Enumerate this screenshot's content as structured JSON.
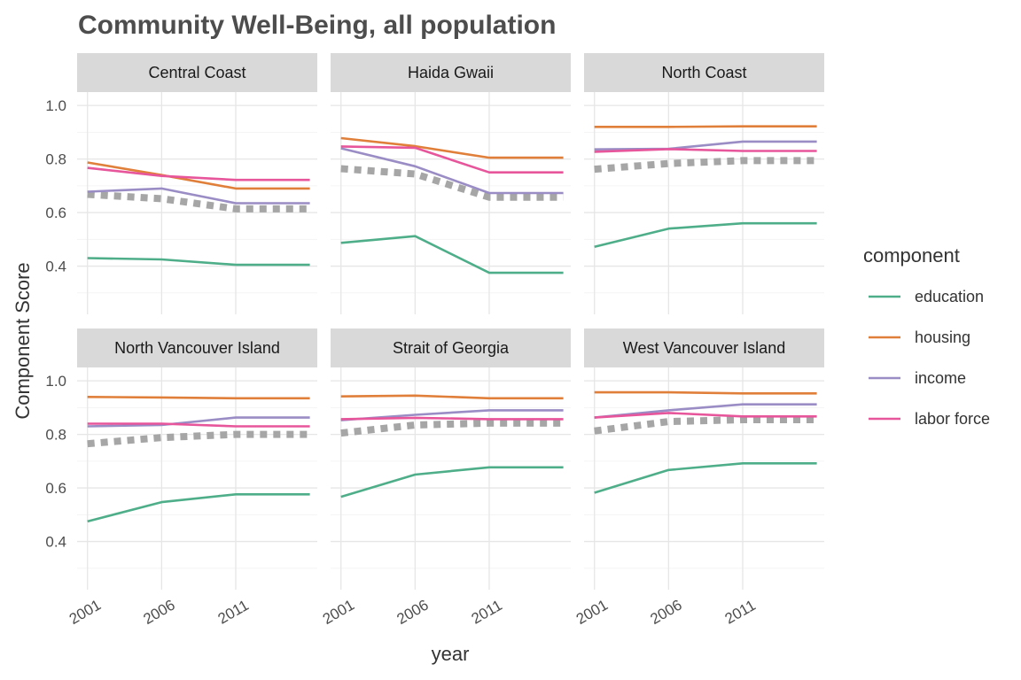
{
  "chart_data": {
    "type": "line",
    "title": "Community Well-Being, all population",
    "xlabel": "year",
    "ylabel": "Component Score",
    "x_ticks": [
      "2001",
      "2006",
      "2011"
    ],
    "y_ticks": [
      "0.4",
      "0.6",
      "0.8",
      "1.0"
    ],
    "xlim": [
      2000.3,
      2016.5
    ],
    "ylim": [
      0.22,
      1.05
    ],
    "grid": true,
    "legend": {
      "title": "component",
      "position": "right",
      "entries": [
        "education",
        "housing",
        "income",
        "labor force"
      ]
    },
    "colors": {
      "education": "#4fae8a",
      "housing": "#e07f3a",
      "income": "#9a8cc4",
      "labor force": "#e7559b",
      "overall": "#a6a6a6"
    },
    "x": [
      2001,
      2006,
      2011,
      2016
    ],
    "panels": [
      {
        "name": "Central Coast",
        "series": [
          {
            "name": "education",
            "values": [
              0.43,
              0.425,
              0.405,
              0.405
            ]
          },
          {
            "name": "housing",
            "values": [
              0.787,
              0.74,
              0.69,
              0.69
            ]
          },
          {
            "name": "income",
            "values": [
              0.678,
              0.69,
              0.635,
              0.635
            ]
          },
          {
            "name": "labor force",
            "values": [
              0.767,
              0.737,
              0.722,
              0.722
            ]
          },
          {
            "values": [
              0.668,
              0.652,
              0.614,
              0.614
            ]
          }
        ]
      },
      {
        "name": "Haida Gwaii",
        "series": [
          {
            "name": "education",
            "values": [
              0.487,
              0.512,
              0.375,
              0.375
            ]
          },
          {
            "name": "housing",
            "values": [
              0.878,
              0.848,
              0.805,
              0.805
            ]
          },
          {
            "name": "income",
            "values": [
              0.84,
              0.773,
              0.673,
              0.673
            ]
          },
          {
            "name": "labor force",
            "values": [
              0.847,
              0.842,
              0.75,
              0.75
            ]
          },
          {
            "values": [
              0.764,
              0.744,
              0.657,
              0.657
            ]
          }
        ]
      },
      {
        "name": "North Coast",
        "series": [
          {
            "name": "education",
            "values": [
              0.472,
              0.54,
              0.56,
              0.56
            ]
          },
          {
            "name": "housing",
            "values": [
              0.92,
              0.92,
              0.922,
              0.922
            ]
          },
          {
            "name": "income",
            "values": [
              0.836,
              0.838,
              0.865,
              0.865
            ]
          },
          {
            "name": "labor force",
            "values": [
              0.827,
              0.837,
              0.83,
              0.83
            ]
          },
          {
            "values": [
              0.762,
              0.783,
              0.794,
              0.794
            ]
          }
        ]
      },
      {
        "name": "North Vancouver Island",
        "series": [
          {
            "name": "education",
            "values": [
              0.475,
              0.547,
              0.576,
              0.576
            ]
          },
          {
            "name": "housing",
            "values": [
              0.94,
              0.938,
              0.935,
              0.935
            ]
          },
          {
            "name": "income",
            "values": [
              0.83,
              0.835,
              0.863,
              0.863
            ]
          },
          {
            "name": "labor force",
            "values": [
              0.84,
              0.84,
              0.83,
              0.83
            ]
          },
          {
            "values": [
              0.765,
              0.788,
              0.8,
              0.8
            ]
          }
        ]
      },
      {
        "name": "Strait of Georgia",
        "series": [
          {
            "name": "education",
            "values": [
              0.567,
              0.65,
              0.677,
              0.677
            ]
          },
          {
            "name": "housing",
            "values": [
              0.942,
              0.945,
              0.935,
              0.935
            ]
          },
          {
            "name": "income",
            "values": [
              0.853,
              0.873,
              0.89,
              0.89
            ]
          },
          {
            "name": "labor force",
            "values": [
              0.857,
              0.862,
              0.857,
              0.857
            ]
          },
          {
            "values": [
              0.805,
              0.835,
              0.842,
              0.842
            ]
          }
        ]
      },
      {
        "name": "West Vancouver Island",
        "series": [
          {
            "name": "education",
            "values": [
              0.582,
              0.667,
              0.692,
              0.692
            ]
          },
          {
            "name": "housing",
            "values": [
              0.957,
              0.957,
              0.953,
              0.953
            ]
          },
          {
            "name": "income",
            "values": [
              0.863,
              0.89,
              0.912,
              0.912
            ]
          },
          {
            "name": "labor force",
            "values": [
              0.863,
              0.88,
              0.867,
              0.867
            ]
          },
          {
            "values": [
              0.813,
              0.848,
              0.855,
              0.855
            ]
          }
        ]
      }
    ]
  }
}
